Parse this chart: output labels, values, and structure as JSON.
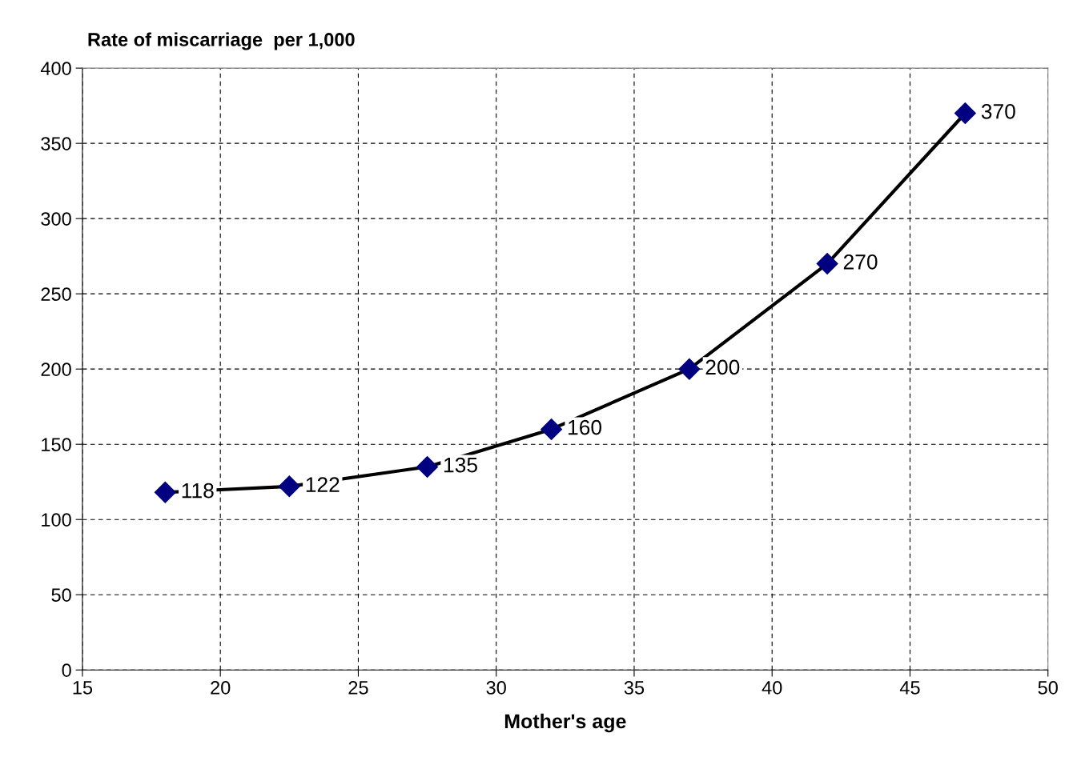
{
  "chart_data": {
    "type": "line",
    "ylabel": "Rate of miscarriage  per 1,000",
    "xlabel": "Mother's age",
    "x": [
      18,
      22.5,
      27.5,
      32,
      37,
      42,
      47
    ],
    "series": [
      {
        "color": "#000000",
        "values": [
          118,
          122,
          135,
          160,
          200,
          270,
          370
        ]
      }
    ],
    "xlim": [
      15,
      50
    ],
    "xticks": [
      15,
      20,
      25,
      30,
      35,
      40,
      45,
      50
    ],
    "ylim": [
      0,
      400
    ],
    "yticks": [
      0,
      50,
      100,
      150,
      200,
      250,
      300,
      350,
      400
    ],
    "grid": true,
    "marker": "diamond",
    "line_style": "solid",
    "data_labels": true,
    "legend": false
  }
}
